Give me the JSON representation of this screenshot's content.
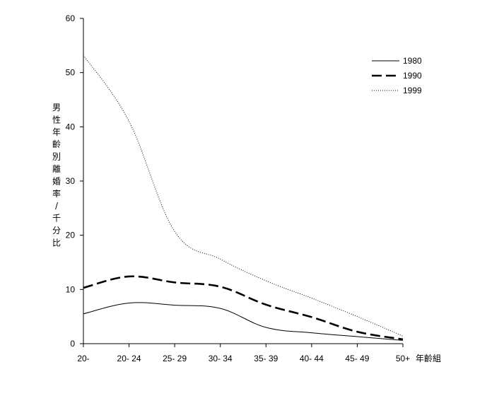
{
  "chart_data": {
    "type": "line",
    "categories": [
      "20-",
      "20- 24",
      "25- 29",
      "30- 34",
      "35- 39",
      "40- 44",
      "45- 49",
      "50+"
    ],
    "xlabel": "年齡組",
    "ylabel": "男性年齡別離婚率/千分比",
    "ylim": [
      0,
      60
    ],
    "yticks": [
      0,
      10,
      20,
      30,
      40,
      50,
      60
    ],
    "grid": false,
    "legend_position": "top-right",
    "series": [
      {
        "name": "1980",
        "style": "solid",
        "color": "#000000",
        "values": [
          5.5,
          7.5,
          7.1,
          6.5,
          3.0,
          2.0,
          1.3,
          0.6
        ]
      },
      {
        "name": "1990",
        "style": "dashed",
        "color": "#000000",
        "values": [
          10.3,
          12.4,
          11.3,
          10.5,
          7.2,
          4.9,
          2.2,
          0.8
        ]
      },
      {
        "name": "1999",
        "style": "dotted",
        "color": "#000000",
        "values": [
          53.2,
          41.0,
          20.7,
          15.6,
          11.6,
          8.4,
          5.0,
          1.4
        ]
      }
    ]
  }
}
